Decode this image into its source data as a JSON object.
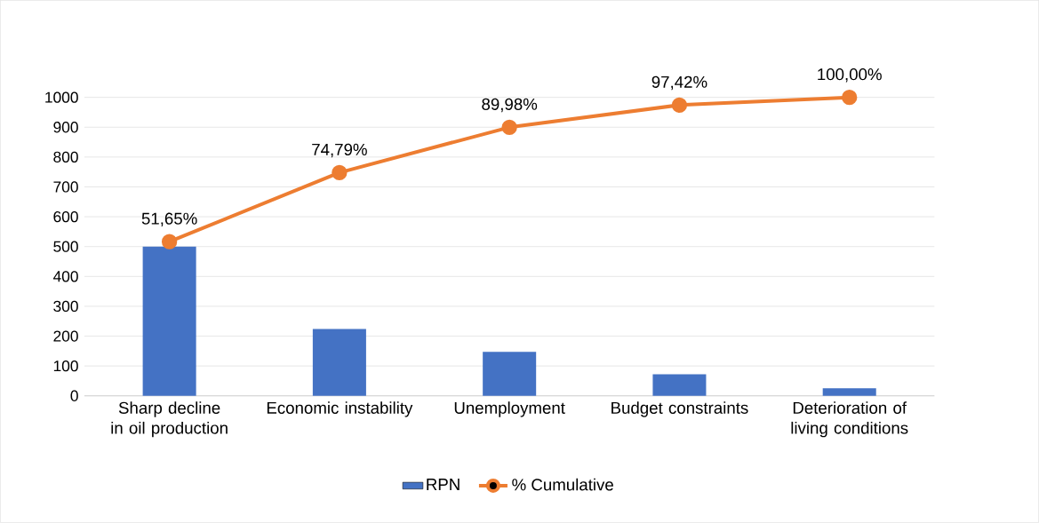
{
  "chart_data": {
    "type": "bar",
    "categories": [
      "Sharp decline in oil production",
      "Economic instability",
      "Unemployment",
      "Budget constraints",
      "Deterioration of living conditions"
    ],
    "series": [
      {
        "name": "RPN",
        "color": "#4472c4",
        "values": [
          500,
          224,
          147,
          72,
          25
        ]
      },
      {
        "name": "% Cumulative",
        "type": "line",
        "axis": "y2",
        "color": "#ed7d31",
        "marker": "circle",
        "values": [
          51.65,
          74.79,
          89.98,
          97.42,
          100.0
        ],
        "value_labels": [
          "51,65%",
          "74,79%",
          "89,98%",
          "97,42%",
          "100,00%"
        ]
      }
    ],
    "ylim": [
      0,
      1000
    ],
    "yticks": [
      0,
      100,
      200,
      300,
      400,
      500,
      600,
      700,
      800,
      900,
      1000
    ],
    "y2lim": [
      0,
      100
    ],
    "grid": "y",
    "legend": "bottom"
  }
}
